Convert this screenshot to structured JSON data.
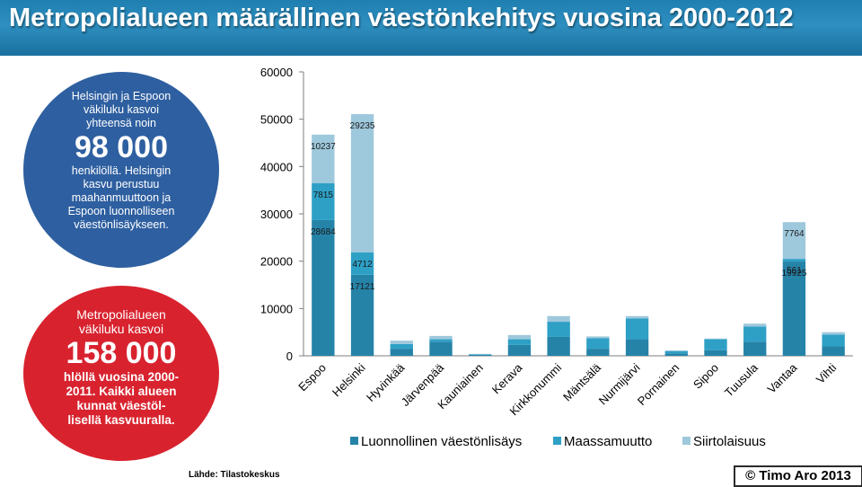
{
  "title": "Metropolialueen määrällinen väestönkehitys vuosina 2000-2012",
  "left_panel": {
    "blue_circle": {
      "line1": "Helsingin ja Espoon",
      "line2": "väkiluku kasvoi",
      "line3": "yhteensä noin",
      "big": "98 000",
      "line4": "henkilöllä. Helsingin",
      "line5": "kasvu perustuu",
      "line6": "maahanmuuttoon ja",
      "line7": "Espoon luonnolliseen",
      "line8": "väestönlisäykseen."
    },
    "red_circle": {
      "line1": "Metropolialueen",
      "line2": "väkiluku kasvoi",
      "big": "158 000",
      "line3": "hlöllä vuosina 2000-",
      "line4": "2011. Kaikki alueen",
      "line5": "kunnat  väestöl-",
      "line6": "lisellä kasvuuralla."
    }
  },
  "source": "Lähde: Tilastokeskus",
  "copyright": "© Timo Aro 2013",
  "chart_data": {
    "type": "bar",
    "stacked": true,
    "categories": [
      "Espoo",
      "Helsinki",
      "Hyvinkää",
      "Järvenpää",
      "Kauniainen",
      "Kerava",
      "Kirkkonummi",
      "Mäntsälä",
      "Nurmijärvi",
      "Pornainen",
      "Sipoo",
      "Tuusula",
      "Vantaa",
      "Vihti"
    ],
    "series": [
      {
        "name": "Luonnollinen väestönlisäys",
        "color": "#2683a8",
        "values": [
          28684,
          17121,
          1500,
          3000,
          200,
          2300,
          4000,
          1500,
          3500,
          500,
          1200,
          3000,
          19925,
          2000
        ]
      },
      {
        "name": "Maassamuutto",
        "color": "#2ea0c6",
        "values": [
          7815,
          4712,
          1000,
          500,
          100,
          1200,
          3200,
          2200,
          4400,
          500,
          2300,
          3200,
          561,
          2500
        ]
      },
      {
        "name": "Siirtolaisuus",
        "color": "#9ec8dc",
        "values": [
          10237,
          29235,
          700,
          700,
          100,
          900,
          1200,
          400,
          500,
          150,
          150,
          600,
          7764,
          500
        ]
      }
    ],
    "data_labels": {
      "Espoo": [
        "28684",
        "7815",
        "10237"
      ],
      "Helsinki": [
        "17121",
        "4712",
        "29235"
      ],
      "Vantaa": [
        "19925",
        "561",
        "7764"
      ]
    },
    "yticks": [
      0,
      10000,
      20000,
      30000,
      40000,
      50000,
      60000
    ],
    "ylim": [
      0,
      60000
    ],
    "legend_position": "bottom",
    "grid": false
  }
}
